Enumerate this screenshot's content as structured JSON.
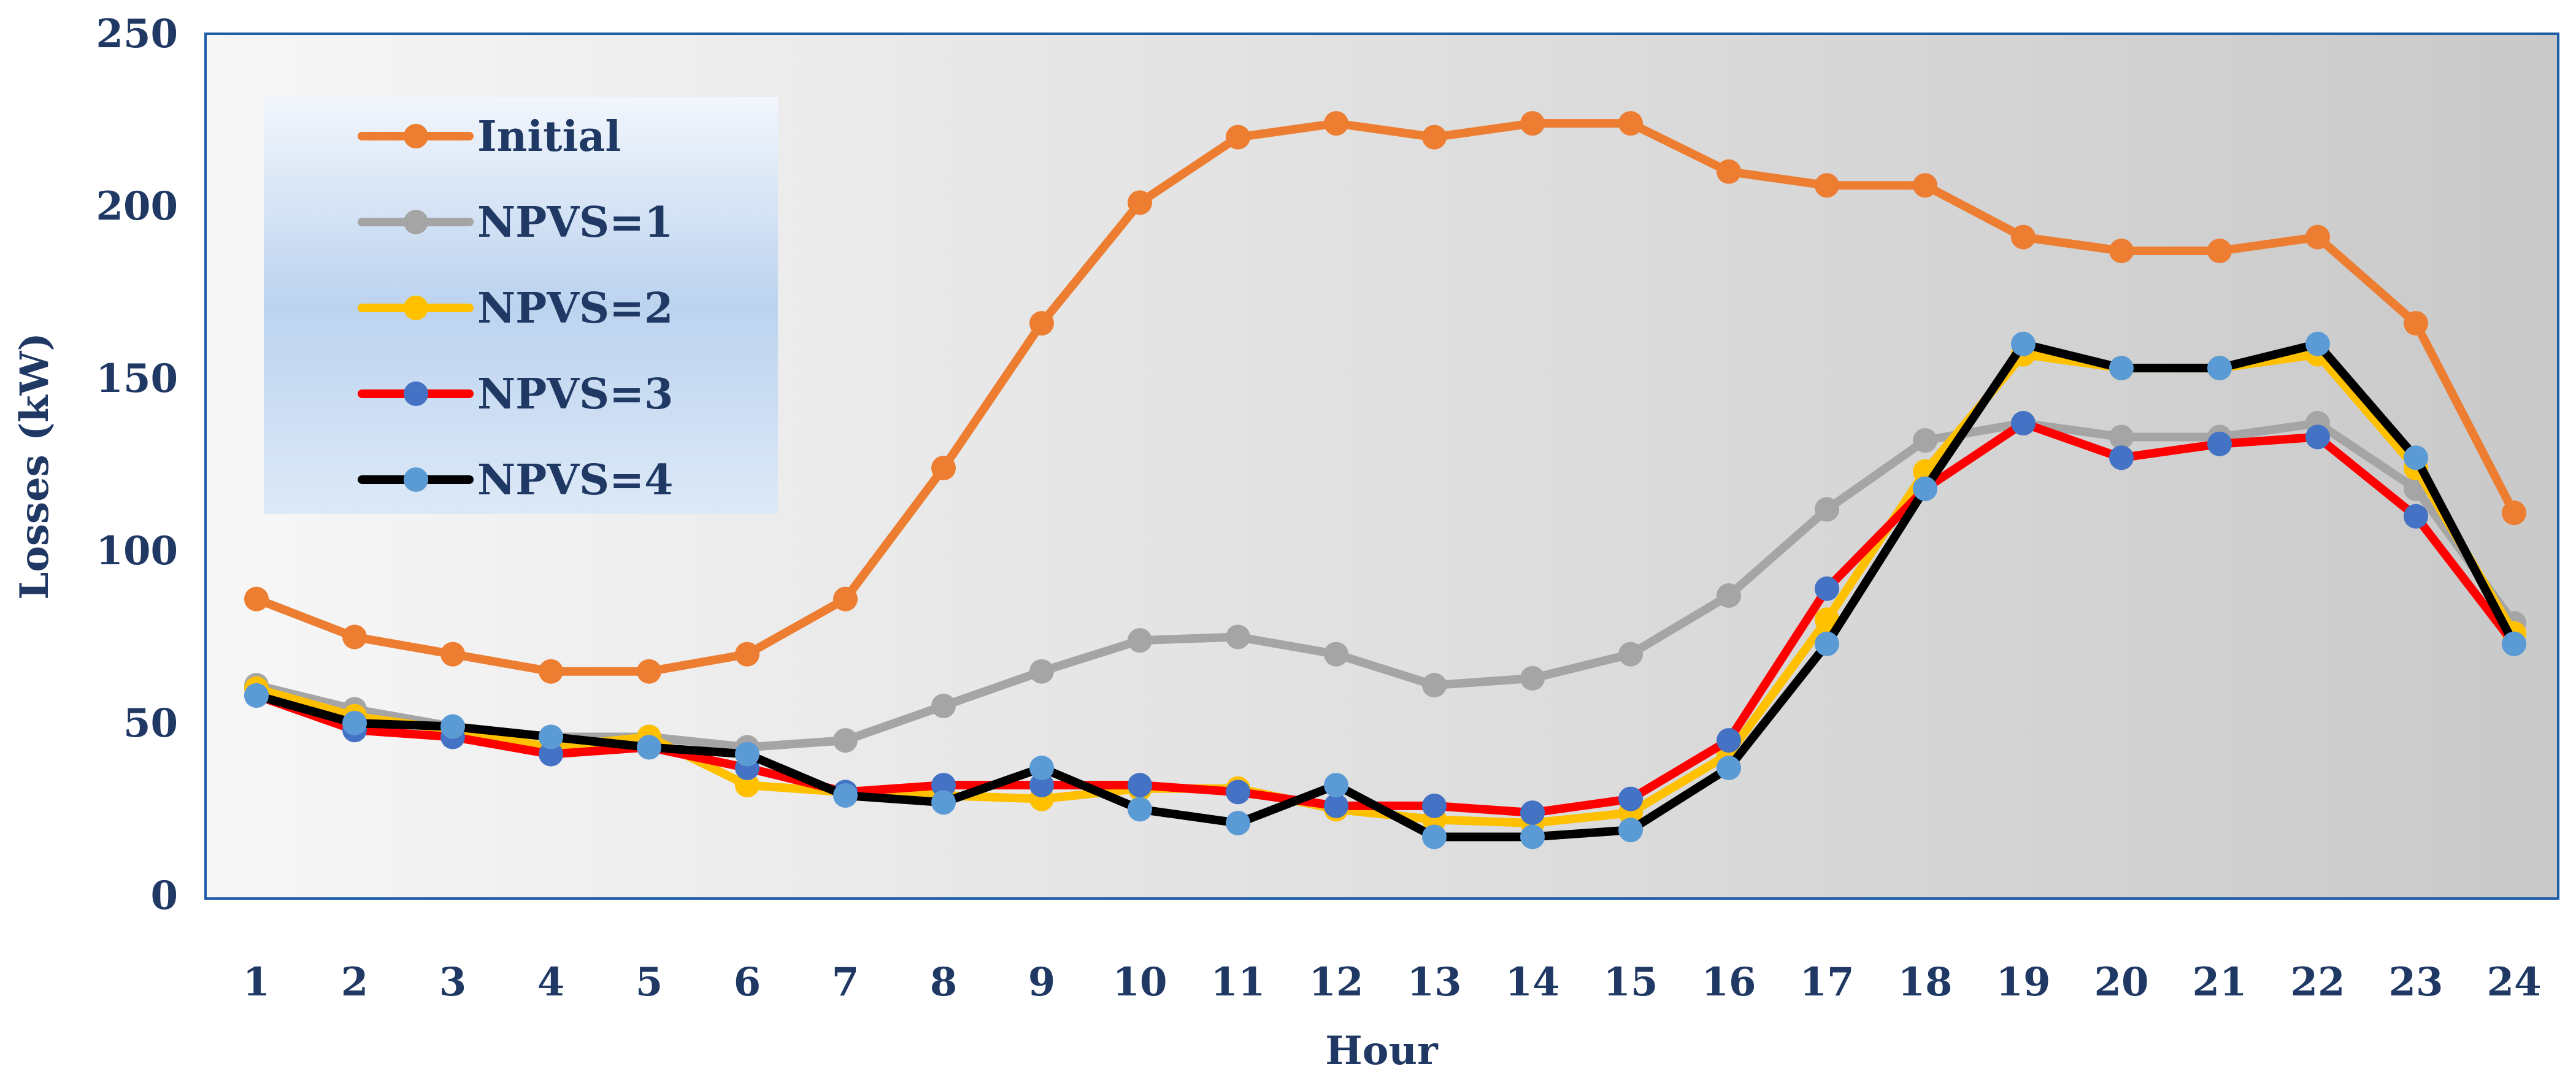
{
  "chart_data": {
    "type": "line",
    "title": "",
    "xlabel": "Hour",
    "ylabel": "Losses (kW)",
    "x": [
      1,
      2,
      3,
      4,
      5,
      6,
      7,
      8,
      9,
      10,
      11,
      12,
      13,
      14,
      15,
      16,
      17,
      18,
      19,
      20,
      21,
      22,
      23,
      24
    ],
    "ylim": [
      0,
      250
    ],
    "yticks": [
      0,
      50,
      100,
      150,
      200,
      250
    ],
    "grid": false,
    "legend": "top-left",
    "series": [
      {
        "name": "Initial",
        "line_color": "#ed7d31",
        "marker_color": "#ed7d31",
        "values": [
          86,
          75,
          70,
          65,
          65,
          70,
          86,
          124,
          166,
          201,
          220,
          224,
          220,
          224,
          224,
          210,
          206,
          206,
          191,
          187,
          187,
          191,
          166,
          111
        ]
      },
      {
        "name": "NPVS=1",
        "line_color": "#a5a5a5",
        "marker_color": "#a5a5a5",
        "values": [
          61,
          54,
          49,
          46,
          46,
          43,
          45,
          55,
          65,
          74,
          75,
          70,
          61,
          63,
          70,
          87,
          112,
          132,
          137,
          133,
          133,
          137,
          118,
          79
        ]
      },
      {
        "name": "NPVS=2",
        "line_color": "#ffc000",
        "marker_color": "#ffc000",
        "values": [
          60,
          52,
          48,
          43,
          46,
          32,
          30,
          29,
          28,
          31,
          31,
          25,
          22,
          21,
          24,
          41,
          80,
          123,
          157,
          153,
          153,
          157,
          124,
          76
        ]
      },
      {
        "name": "NPVS=3",
        "line_color": "#ff0000",
        "marker_color": "#4472c4",
        "values": [
          58,
          48,
          46,
          41,
          43,
          37,
          30,
          32,
          32,
          32,
          30,
          26,
          26,
          24,
          28,
          45,
          89,
          118,
          137,
          127,
          131,
          133,
          110,
          73
        ]
      },
      {
        "name": "NPVS=4",
        "line_color": "#000000",
        "marker_color": "#5b9bd5",
        "values": [
          58,
          50,
          49,
          46,
          43,
          41,
          29,
          27,
          37,
          25,
          21,
          32,
          17,
          17,
          19,
          37,
          73,
          118,
          160,
          153,
          153,
          160,
          127,
          73
        ]
      }
    ]
  }
}
